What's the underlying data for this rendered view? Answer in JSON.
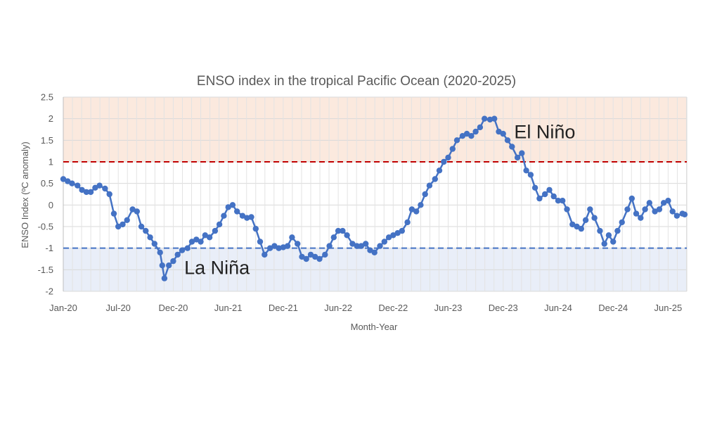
{
  "chart_data": {
    "type": "scatter",
    "title": "ENSO index in the tropical Pacific Ocean (2020-2025)",
    "xlabel": "Month-Year",
    "ylabel": "ENSO Index (ºC anomaly)",
    "ylim": [
      -2,
      2.5
    ],
    "yticks": [
      "2.5",
      "2",
      "1.5",
      "1",
      "0.5",
      "0",
      "-0.5",
      "-1",
      "-1.5",
      "-2"
    ],
    "xtick_labels": [
      "Jan-20",
      "Jul-20",
      "Dec-20",
      "Jun-21",
      "Dec-21",
      "Jun-22",
      "Dec-22",
      "Jun-23",
      "Dec-23",
      "Jun-24",
      "Dec-24",
      "Jun-25"
    ],
    "grid": true,
    "thresholds": [
      {
        "value": 1,
        "color": "#c00000",
        "fill": "#fbe9de"
      },
      {
        "value": -1,
        "color": "#4472c4",
        "fill": "#e9eef8"
      }
    ],
    "annotations": [
      {
        "text": "El Niño",
        "x": 2024.1,
        "y": 1.55
      },
      {
        "text": "La Niña",
        "x": 2021.1,
        "y": -1.6
      }
    ],
    "series": [
      {
        "color": "#4472c4",
        "points": [
          [
            2020.0,
            0.6
          ],
          [
            2020.04,
            0.55
          ],
          [
            2020.08,
            0.5
          ],
          [
            2020.13,
            0.45
          ],
          [
            2020.17,
            0.35
          ],
          [
            2020.21,
            0.3
          ],
          [
            2020.25,
            0.3
          ],
          [
            2020.29,
            0.4
          ],
          [
            2020.33,
            0.45
          ],
          [
            2020.38,
            0.38
          ],
          [
            2020.42,
            0.25
          ],
          [
            2020.46,
            -0.2
          ],
          [
            2020.5,
            -0.5
          ],
          [
            2020.54,
            -0.45
          ],
          [
            2020.58,
            -0.35
          ],
          [
            2020.63,
            -0.1
          ],
          [
            2020.67,
            -0.15
          ],
          [
            2020.71,
            -0.5
          ],
          [
            2020.75,
            -0.6
          ],
          [
            2020.79,
            -0.75
          ],
          [
            2020.83,
            -0.9
          ],
          [
            2020.88,
            -1.1
          ],
          [
            2020.9,
            -1.4
          ],
          [
            2020.92,
            -1.7
          ],
          [
            2020.96,
            -1.4
          ],
          [
            2021.0,
            -1.3
          ],
          [
            2021.04,
            -1.15
          ],
          [
            2021.08,
            -1.05
          ],
          [
            2021.13,
            -1.0
          ],
          [
            2021.17,
            -0.85
          ],
          [
            2021.21,
            -0.8
          ],
          [
            2021.25,
            -0.85
          ],
          [
            2021.29,
            -0.7
          ],
          [
            2021.33,
            -0.75
          ],
          [
            2021.38,
            -0.6
          ],
          [
            2021.42,
            -0.45
          ],
          [
            2021.46,
            -0.25
          ],
          [
            2021.5,
            -0.05
          ],
          [
            2021.54,
            0.0
          ],
          [
            2021.58,
            -0.15
          ],
          [
            2021.63,
            -0.25
          ],
          [
            2021.67,
            -0.3
          ],
          [
            2021.71,
            -0.28
          ],
          [
            2021.75,
            -0.55
          ],
          [
            2021.79,
            -0.85
          ],
          [
            2021.83,
            -1.15
          ],
          [
            2021.88,
            -1.0
          ],
          [
            2021.92,
            -0.95
          ],
          [
            2021.96,
            -1.0
          ],
          [
            2022.0,
            -0.98
          ],
          [
            2022.04,
            -0.95
          ],
          [
            2022.08,
            -0.75
          ],
          [
            2022.13,
            -0.9
          ],
          [
            2022.17,
            -1.2
          ],
          [
            2022.21,
            -1.25
          ],
          [
            2022.25,
            -1.15
          ],
          [
            2022.29,
            -1.2
          ],
          [
            2022.33,
            -1.25
          ],
          [
            2022.38,
            -1.15
          ],
          [
            2022.42,
            -0.95
          ],
          [
            2022.46,
            -0.75
          ],
          [
            2022.5,
            -0.6
          ],
          [
            2022.54,
            -0.6
          ],
          [
            2022.58,
            -0.7
          ],
          [
            2022.63,
            -0.9
          ],
          [
            2022.67,
            -0.95
          ],
          [
            2022.71,
            -0.95
          ],
          [
            2022.75,
            -0.9
          ],
          [
            2022.79,
            -1.05
          ],
          [
            2022.83,
            -1.1
          ],
          [
            2022.88,
            -0.95
          ],
          [
            2022.92,
            -0.85
          ],
          [
            2022.96,
            -0.75
          ],
          [
            2023.0,
            -0.7
          ],
          [
            2023.04,
            -0.65
          ],
          [
            2023.08,
            -0.6
          ],
          [
            2023.13,
            -0.4
          ],
          [
            2023.17,
            -0.1
          ],
          [
            2023.21,
            -0.15
          ],
          [
            2023.25,
            0.0
          ],
          [
            2023.29,
            0.25
          ],
          [
            2023.33,
            0.45
          ],
          [
            2023.38,
            0.6
          ],
          [
            2023.42,
            0.8
          ],
          [
            2023.46,
            1.0
          ],
          [
            2023.5,
            1.1
          ],
          [
            2023.54,
            1.3
          ],
          [
            2023.58,
            1.5
          ],
          [
            2023.63,
            1.6
          ],
          [
            2023.67,
            1.65
          ],
          [
            2023.71,
            1.6
          ],
          [
            2023.75,
            1.7
          ],
          [
            2023.79,
            1.8
          ],
          [
            2023.83,
            2.0
          ],
          [
            2023.88,
            1.98
          ],
          [
            2023.92,
            2.0
          ],
          [
            2023.96,
            1.7
          ],
          [
            2024.0,
            1.65
          ],
          [
            2024.04,
            1.5
          ],
          [
            2024.08,
            1.35
          ],
          [
            2024.13,
            1.1
          ],
          [
            2024.17,
            1.2
          ],
          [
            2024.21,
            0.8
          ],
          [
            2024.25,
            0.7
          ],
          [
            2024.29,
            0.4
          ],
          [
            2024.33,
            0.15
          ],
          [
            2024.38,
            0.25
          ],
          [
            2024.42,
            0.35
          ],
          [
            2024.46,
            0.2
          ],
          [
            2024.5,
            0.1
          ],
          [
            2024.54,
            0.1
          ],
          [
            2024.58,
            -0.1
          ],
          [
            2024.63,
            -0.45
          ],
          [
            2024.67,
            -0.5
          ],
          [
            2024.71,
            -0.55
          ],
          [
            2024.75,
            -0.35
          ],
          [
            2024.79,
            -0.1
          ],
          [
            2024.83,
            -0.3
          ],
          [
            2024.88,
            -0.6
          ],
          [
            2024.92,
            -0.9
          ],
          [
            2024.96,
            -0.7
          ],
          [
            2025.0,
            -0.85
          ],
          [
            2025.04,
            -0.6
          ],
          [
            2025.08,
            -0.4
          ],
          [
            2025.13,
            -0.1
          ],
          [
            2025.17,
            0.15
          ],
          [
            2025.21,
            -0.2
          ],
          [
            2025.25,
            -0.3
          ],
          [
            2025.29,
            -0.1
          ],
          [
            2025.33,
            0.05
          ],
          [
            2025.38,
            -0.15
          ],
          [
            2025.42,
            -0.1
          ],
          [
            2025.46,
            0.05
          ],
          [
            2025.5,
            0.1
          ],
          [
            2025.54,
            -0.15
          ],
          [
            2025.58,
            -0.25
          ],
          [
            2025.63,
            -0.2
          ],
          [
            2025.65,
            -0.22
          ]
        ]
      }
    ]
  }
}
